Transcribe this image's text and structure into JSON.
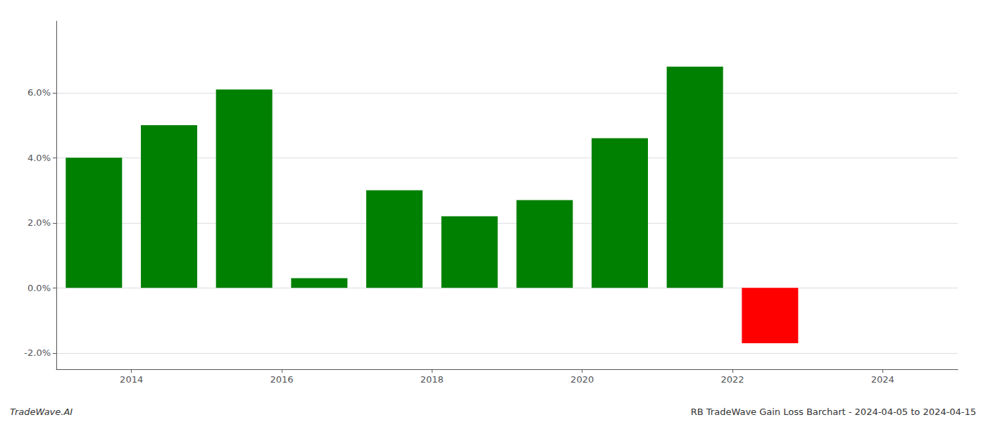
{
  "chart_data": {
    "type": "bar",
    "x": [
      2013,
      2014,
      2015,
      2016,
      2017,
      2018,
      2019,
      2020,
      2021,
      2022,
      2023
    ],
    "values": [
      0.04,
      0.05,
      0.061,
      0.003,
      0.03,
      0.022,
      0.027,
      0.046,
      0.068,
      -0.017,
      0.0
    ],
    "colors": [
      "#008000",
      "#008000",
      "#008000",
      "#008000",
      "#008000",
      "#008000",
      "#008000",
      "#008000",
      "#008000",
      "#ff0000",
      "#ff0000"
    ],
    "xlim": [
      2012.5,
      2024.5
    ],
    "xticks": [
      {
        "value": 2013.5,
        "label": "2014"
      },
      {
        "value": 2015.5,
        "label": "2016"
      },
      {
        "value": 2017.5,
        "label": "2018"
      },
      {
        "value": 2019.5,
        "label": "2020"
      },
      {
        "value": 2021.5,
        "label": "2022"
      },
      {
        "value": 2023.5,
        "label": "2024"
      }
    ],
    "ylim": [
      -0.025,
      0.082
    ],
    "yticks": [
      {
        "value": -0.02,
        "label": "-2.0%"
      },
      {
        "value": 0.0,
        "label": "0.0%"
      },
      {
        "value": 0.02,
        "label": "2.0%"
      },
      {
        "value": 0.04,
        "label": "4.0%"
      },
      {
        "value": 0.06,
        "label": "6.0%"
      }
    ],
    "grid": true,
    "annotations": [
      "TradeWave.AI",
      "RB TradeWave Gain Loss Barchart - 2024-04-05 to 2024-04-15"
    ]
  }
}
